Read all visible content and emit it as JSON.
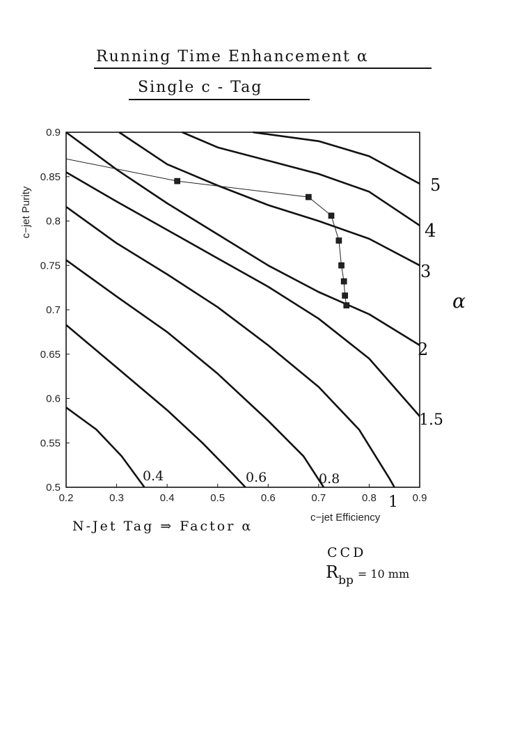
{
  "title": "Running Time Enhancement α",
  "subtitle": "Single c - Tag",
  "note_line": "N-Jet Tag ⇒ Factor α",
  "note_ccd": "CCD",
  "note_rbp": "R",
  "note_rbp_sub": "bp",
  "note_rbp_val": "= 10 mm",
  "right_axis_symbol": "α",
  "chart_data": {
    "type": "line",
    "xlabel": "c−jet Efficiency",
    "ylabel": "c−jet Purity",
    "xlim": [
      0.2,
      0.9
    ],
    "ylim": [
      0.5,
      0.9
    ],
    "xticks": [
      "0.2",
      "0.3",
      "0.4",
      "0.5",
      "0.6",
      "0.7",
      "0.8",
      "0.9"
    ],
    "yticks": [
      "0.5",
      "0.55",
      "0.6",
      "0.65",
      "0.7",
      "0.75",
      "0.8",
      "0.85",
      "0.9"
    ],
    "contours": [
      {
        "label": "0.4",
        "points": [
          [
            0.2,
            0.59
          ],
          [
            0.26,
            0.565
          ],
          [
            0.31,
            0.535
          ],
          [
            0.355,
            0.5
          ]
        ]
      },
      {
        "label": "",
        "points": [
          [
            0.2,
            0.683
          ],
          [
            0.3,
            0.635
          ],
          [
            0.4,
            0.587
          ],
          [
            0.47,
            0.55
          ],
          [
            0.53,
            0.515
          ],
          [
            0.555,
            0.5
          ]
        ]
      },
      {
        "label": "0.6",
        "points": [
          [
            0.2,
            0.756
          ],
          [
            0.3,
            0.715
          ],
          [
            0.4,
            0.675
          ],
          [
            0.5,
            0.628
          ],
          [
            0.6,
            0.575
          ],
          [
            0.67,
            0.535
          ],
          [
            0.71,
            0.5
          ]
        ]
      },
      {
        "label": "",
        "points": [
          [
            0.2,
            0.816
          ],
          [
            0.3,
            0.775
          ],
          [
            0.4,
            0.74
          ],
          [
            0.5,
            0.703
          ],
          [
            0.6,
            0.66
          ],
          [
            0.7,
            0.613
          ],
          [
            0.78,
            0.565
          ],
          [
            0.84,
            0.51
          ],
          [
            0.85,
            0.5
          ]
        ]
      },
      {
        "label": "1.5",
        "points": [
          [
            0.2,
            0.855
          ],
          [
            0.3,
            0.822
          ],
          [
            0.4,
            0.79
          ],
          [
            0.5,
            0.758
          ],
          [
            0.6,
            0.726
          ],
          [
            0.7,
            0.69
          ],
          [
            0.8,
            0.645
          ],
          [
            0.9,
            0.58
          ]
        ]
      },
      {
        "label": "2",
        "points": [
          [
            0.2,
            0.9
          ],
          [
            0.3,
            0.858
          ],
          [
            0.4,
            0.82
          ],
          [
            0.5,
            0.785
          ],
          [
            0.6,
            0.75
          ],
          [
            0.7,
            0.72
          ],
          [
            0.8,
            0.695
          ],
          [
            0.9,
            0.66
          ]
        ]
      },
      {
        "label": "3",
        "points": [
          [
            0.305,
            0.9
          ],
          [
            0.4,
            0.864
          ],
          [
            0.5,
            0.84
          ],
          [
            0.6,
            0.818
          ],
          [
            0.7,
            0.8
          ],
          [
            0.8,
            0.78
          ],
          [
            0.9,
            0.75
          ]
        ]
      },
      {
        "label": "4",
        "points": [
          [
            0.43,
            0.9
          ],
          [
            0.5,
            0.883
          ],
          [
            0.6,
            0.868
          ],
          [
            0.7,
            0.853
          ],
          [
            0.8,
            0.833
          ],
          [
            0.9,
            0.795
          ]
        ]
      },
      {
        "label": "5",
        "points": [
          [
            0.57,
            0.9
          ],
          [
            0.7,
            0.89
          ],
          [
            0.8,
            0.873
          ],
          [
            0.9,
            0.842
          ]
        ]
      }
    ],
    "series": [
      {
        "points": [
          [
            0.2,
            0.87
          ],
          [
            0.42,
            0.845
          ],
          [
            0.68,
            0.827
          ],
          [
            0.725,
            0.806
          ],
          [
            0.74,
            0.778
          ],
          [
            0.745,
            0.75
          ],
          [
            0.75,
            0.732
          ],
          [
            0.752,
            0.716
          ],
          [
            0.755,
            0.705
          ]
        ]
      }
    ],
    "markers": [
      [
        0.42,
        0.845
      ],
      [
        0.68,
        0.827
      ],
      [
        0.725,
        0.806
      ],
      [
        0.74,
        0.778
      ],
      [
        0.745,
        0.75
      ],
      [
        0.75,
        0.732
      ],
      [
        0.752,
        0.716
      ],
      [
        0.755,
        0.705
      ]
    ],
    "inline_labels": [
      "0.4",
      "0.6",
      "0.8",
      "1"
    ],
    "right_labels": [
      "5",
      "4",
      "3",
      "2",
      "1.5"
    ]
  }
}
